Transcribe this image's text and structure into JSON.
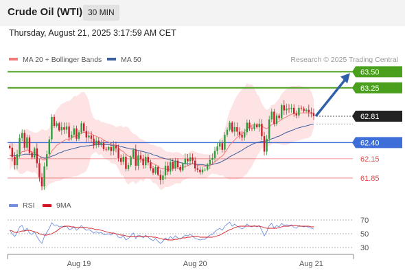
{
  "header": {
    "title": "Crude Oil (WTI)",
    "timeframe": "30 MIN",
    "datetime": "Thursday, August 21, 2025 3:17:59 AM CET"
  },
  "colors": {
    "up": "#2e9e3e",
    "down": "#c8202a",
    "bollinger_fill": "#fde0e0",
    "ma20": "#f27a7a",
    "ma50": "#3a5d9c",
    "resistance": "#4aa01c",
    "current": "#222222",
    "support": "#3e6fd8",
    "minor_level": "#e24a4a",
    "rsi": "#6f8fe0",
    "rsi_ma": "#d0161e",
    "arrow": "#2f5fa6"
  },
  "chart_data": [
    {
      "type": "candlestick",
      "legend": [
        {
          "name": "MA 20 + Bollinger Bands",
          "color": "#f27a7a"
        },
        {
          "name": "MA 50",
          "color": "#3a5d9c"
        }
      ],
      "watermark": "Research © 2025 Trading Central",
      "x_ticks": [
        {
          "label": "Aug 19",
          "index": 28
        },
        {
          "label": "Aug 20",
          "index": 75
        },
        {
          "label": "Aug 21",
          "index": 122
        }
      ],
      "levels": [
        {
          "value": 63.5,
          "label": "63.50",
          "style": "resistance"
        },
        {
          "value": 63.25,
          "label": "63.25",
          "style": "resistance"
        },
        {
          "value": 62.81,
          "label": "62.81",
          "style": "current"
        },
        {
          "value": 62.4,
          "label": "62.40",
          "style": "support"
        },
        {
          "value": 62.15,
          "label": "62.15",
          "style": "minor"
        },
        {
          "value": 61.85,
          "label": "61.85",
          "style": "minor"
        }
      ],
      "ylim": [
        61.7,
        63.6
      ],
      "forecast_arrow": {
        "from": 62.81,
        "to": 63.5
      },
      "closes": [
        62.32,
        62.18,
        62.05,
        62.22,
        62.47,
        62.55,
        62.32,
        62.48,
        62.24,
        62.17,
        62.31,
        62.08,
        61.86,
        61.72,
        62.03,
        62.22,
        62.45,
        62.8,
        62.66,
        62.7,
        62.59,
        62.64,
        62.6,
        62.65,
        62.48,
        62.52,
        62.62,
        62.46,
        62.56,
        62.7,
        62.58,
        62.48,
        62.51,
        62.46,
        62.36,
        62.43,
        62.37,
        62.4,
        62.3,
        62.29,
        62.33,
        62.27,
        62.35,
        62.31,
        62.16,
        62.1,
        62.18,
        61.99,
        62.05,
        62.17,
        62.29,
        62.04,
        62.2,
        62.15,
        62.05,
        62.18,
        62.09,
        62.0,
        61.93,
        62.02,
        61.9,
        61.82,
        61.89,
        62.04,
        61.95,
        62.1,
        62.0,
        62.12,
        62.02,
        61.97,
        62.07,
        62.15,
        62.11,
        62.17,
        62.12,
        62.0,
        61.98,
        61.94,
        61.98,
        61.98,
        62.06,
        62.13,
        62.16,
        62.27,
        62.34,
        62.39,
        62.29,
        62.52,
        62.6,
        62.71,
        62.57,
        62.64,
        62.57,
        62.52,
        62.48,
        62.56,
        62.71,
        62.62,
        62.61,
        62.68,
        62.64,
        62.69,
        62.5,
        62.26,
        62.46,
        62.76,
        62.88,
        62.69,
        62.82,
        62.78,
        62.98,
        62.9,
        62.93,
        62.92,
        62.94,
        62.85,
        62.82,
        62.94,
        62.93,
        62.89,
        62.91,
        62.87,
        62.86,
        62.81
      ],
      "ma20": [
        62.2,
        62.21,
        62.18,
        62.17,
        62.21,
        62.26,
        62.26,
        62.29,
        62.27,
        62.25,
        62.25,
        62.23,
        62.19,
        62.14,
        62.13,
        62.15,
        62.19,
        62.27,
        62.31,
        62.36,
        62.38,
        62.41,
        62.43,
        62.45,
        62.45,
        62.47,
        62.5,
        62.5,
        62.52,
        62.55,
        62.56,
        62.55,
        62.55,
        62.54,
        62.51,
        62.5,
        62.48,
        62.47,
        62.44,
        62.42,
        62.41,
        62.38,
        62.37,
        62.35,
        62.32,
        62.28,
        62.26,
        62.22,
        62.19,
        62.18,
        62.17,
        62.14,
        62.14,
        62.14,
        62.12,
        62.13,
        62.12,
        62.1,
        62.07,
        62.06,
        62.03,
        62.0,
        61.99,
        61.99,
        61.98,
        61.99,
        61.99,
        62.01,
        62.01,
        62.0,
        62.01,
        62.03,
        62.04,
        62.06,
        62.07,
        62.06,
        62.05,
        62.04,
        62.04,
        62.03,
        62.04,
        62.05,
        62.07,
        62.1,
        62.13,
        62.17,
        62.19,
        62.24,
        62.3,
        62.36,
        62.4,
        62.44,
        62.48,
        62.51,
        62.54,
        62.57,
        62.62,
        62.64,
        62.67,
        62.68,
        62.67,
        62.68,
        62.66,
        62.63,
        62.62,
        62.64,
        62.68,
        62.69,
        62.71,
        62.73,
        62.76,
        62.78,
        62.8,
        62.82,
        62.84,
        62.85,
        62.85,
        62.86,
        62.86,
        62.86,
        62.86,
        62.86,
        62.85,
        62.85
      ],
      "ma50": [
        62.2,
        62.2,
        62.2,
        62.19,
        62.2,
        62.21,
        62.22,
        62.22,
        62.22,
        62.22,
        62.22,
        62.21,
        62.19,
        62.17,
        62.16,
        62.16,
        62.17,
        62.19,
        62.2,
        62.22,
        62.24,
        62.25,
        62.27,
        62.28,
        62.29,
        62.3,
        62.31,
        62.32,
        62.33,
        62.34,
        62.34,
        62.35,
        62.35,
        62.36,
        62.36,
        62.37,
        62.37,
        62.37,
        62.37,
        62.37,
        62.37,
        62.36,
        62.36,
        62.36,
        62.35,
        62.34,
        62.33,
        62.32,
        62.31,
        62.3,
        62.3,
        62.29,
        62.28,
        62.27,
        62.26,
        62.25,
        62.24,
        62.23,
        62.21,
        62.2,
        62.19,
        62.17,
        62.16,
        62.15,
        62.14,
        62.13,
        62.12,
        62.11,
        62.1,
        62.09,
        62.08,
        62.07,
        62.07,
        62.07,
        62.07,
        62.07,
        62.06,
        62.06,
        62.06,
        62.05,
        62.05,
        62.05,
        62.06,
        62.07,
        62.08,
        62.09,
        62.11,
        62.13,
        62.15,
        62.18,
        62.2,
        62.22,
        62.24,
        62.26,
        62.28,
        62.31,
        62.33,
        62.35,
        62.37,
        62.39,
        62.4,
        62.41,
        62.42,
        62.42,
        62.43,
        62.44,
        62.46,
        62.47,
        62.49,
        62.5,
        62.52,
        62.54,
        62.56,
        62.57,
        62.59,
        62.6,
        62.62,
        62.63,
        62.64,
        62.65,
        62.66,
        62.67,
        62.68,
        62.69
      ]
    },
    {
      "type": "line",
      "legend": [
        {
          "name": "RSI",
          "color": "#6f8fe0"
        },
        {
          "name": "9MA",
          "color": "#d0161e"
        }
      ],
      "y_ticks": [
        70,
        50,
        30
      ],
      "ylim": [
        20,
        80
      ],
      "rsi": [
        55,
        50,
        46,
        52,
        60,
        62,
        54,
        58,
        51,
        49,
        53,
        46,
        40,
        36,
        46,
        52,
        58,
        66,
        62,
        63,
        60,
        61,
        60,
        61,
        56,
        57,
        60,
        55,
        58,
        62,
        58,
        55,
        56,
        54,
        51,
        53,
        51,
        52,
        49,
        49,
        50,
        48,
        51,
        50,
        45,
        44,
        47,
        41,
        43,
        47,
        51,
        43,
        48,
        47,
        44,
        48,
        45,
        42,
        40,
        43,
        39,
        36,
        39,
        44,
        41,
        46,
        43,
        47,
        44,
        42,
        45,
        48,
        47,
        49,
        47,
        43,
        42,
        41,
        42,
        42,
        45,
        48,
        49,
        53,
        56,
        58,
        55,
        61,
        64,
        67,
        61,
        64,
        61,
        59,
        57,
        59,
        64,
        61,
        60,
        62,
        60,
        62,
        55,
        47,
        53,
        62,
        65,
        58,
        62,
        60,
        65,
        62,
        63,
        62,
        63,
        59,
        58,
        62,
        61,
        60,
        61,
        59,
        58,
        57
      ],
      "rsi_ma": [
        55,
        54,
        52,
        52,
        53,
        54,
        54,
        55,
        55,
        54,
        53,
        52,
        50,
        49,
        48,
        48,
        49,
        50,
        52,
        54,
        57,
        59,
        61,
        61,
        61,
        60,
        60,
        59,
        59,
        59,
        59,
        59,
        58,
        58,
        57,
        56,
        56,
        55,
        54,
        53,
        52,
        51,
        51,
        50,
        49,
        48,
        48,
        47,
        46,
        46,
        46,
        46,
        46,
        46,
        46,
        46,
        46,
        46,
        45,
        45,
        44,
        43,
        42,
        42,
        41,
        41,
        41,
        42,
        42,
        43,
        44,
        44,
        45,
        45,
        46,
        46,
        46,
        45,
        45,
        45,
        45,
        45,
        45,
        46,
        47,
        48,
        50,
        52,
        54,
        56,
        57,
        59,
        60,
        61,
        61,
        61,
        61,
        61,
        61,
        61,
        61,
        61,
        60,
        59,
        58,
        58,
        58,
        58,
        58,
        59,
        60,
        61,
        61,
        61,
        62,
        62,
        62,
        61,
        61,
        61,
        61,
        61,
        60,
        60
      ]
    }
  ]
}
